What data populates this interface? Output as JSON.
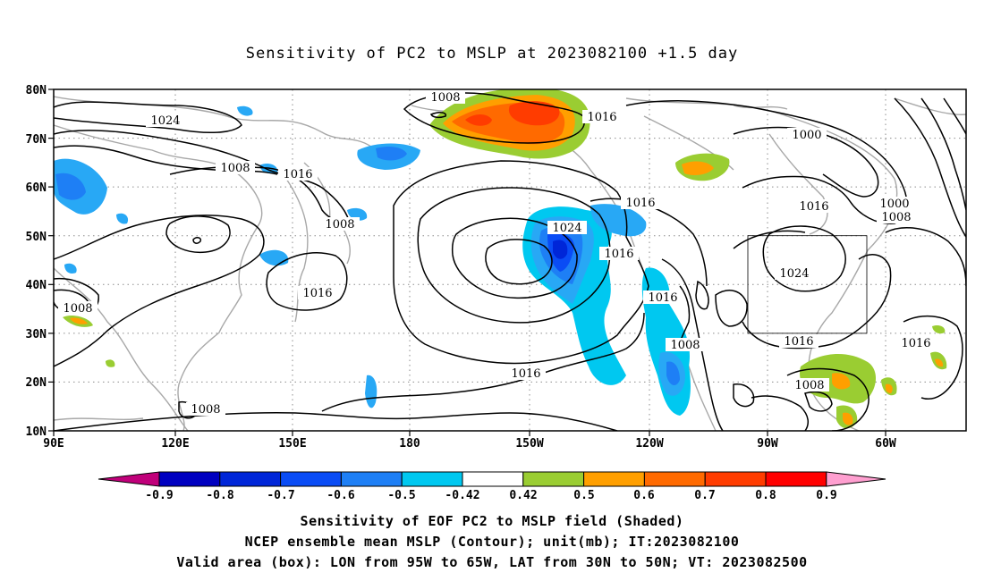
{
  "title": "Sensitivity of PC2 to MSLP at 2023082100 +1.5 day",
  "map": {
    "lat_labels": [
      "80N",
      "70N",
      "60N",
      "50N",
      "40N",
      "30N",
      "20N",
      "10N"
    ],
    "lon_labels": [
      "90E",
      "120E",
      "150E",
      "180",
      "150W",
      "120W",
      "90W",
      "60W"
    ],
    "contour_labels": [
      "1008",
      "1024",
      "1016",
      "1008",
      "1016",
      "1008",
      "1016",
      "1000",
      "1016",
      "1000",
      "1008",
      "1024",
      "1016",
      "1016",
      "1016",
      "1008",
      "1024",
      "1016",
      "1016",
      "1008",
      "1008",
      "1016",
      "1008"
    ],
    "box": {
      "lon_range": [
        "95W",
        "65W"
      ],
      "lat_range": [
        "30N",
        "50N"
      ]
    }
  },
  "colorbar": {
    "tick_labels": [
      "-0.9",
      "-0.8",
      "-0.7",
      "-0.6",
      "-0.5",
      "-0.42",
      "0.42",
      "0.5",
      "0.6",
      "0.7",
      "0.8",
      "0.9"
    ],
    "colors": [
      "#c0007a",
      "#0000c0",
      "#0026d8",
      "#0a4cf5",
      "#1e7ff5",
      "#28a8f5",
      "#00c8f0",
      "#ffffff",
      "#9acd32",
      "#ff9f00",
      "#ff6a00",
      "#ff3c00",
      "#ff0000",
      "#ff9fd0"
    ]
  },
  "footer": {
    "line1": "Sensitivity of EOF PC2 to MSLP field (Shaded)",
    "line2": "NCEP ensemble mean MSLP (Contour); unit(mb); IT:2023082100",
    "line3": "Valid area (box): LON from 95W to 65W, LAT from 30N to 50N; VT: 2023082500"
  }
}
